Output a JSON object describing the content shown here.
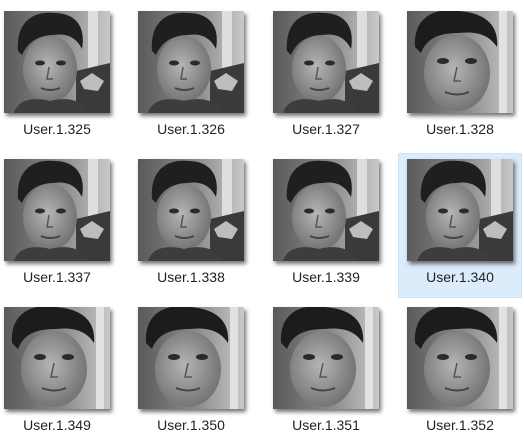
{
  "thumbnails": [
    {
      "name": "User.1.325",
      "selected": false
    },
    {
      "name": "User.1.326",
      "selected": false
    },
    {
      "name": "User.1.327",
      "selected": false
    },
    {
      "name": "User.1.328",
      "selected": false
    },
    {
      "name": "User.1.337",
      "selected": false
    },
    {
      "name": "User.1.338",
      "selected": false
    },
    {
      "name": "User.1.339",
      "selected": false
    },
    {
      "name": "User.1.340",
      "selected": true
    },
    {
      "name": "User.1.349",
      "selected": false
    },
    {
      "name": "User.1.350",
      "selected": false
    },
    {
      "name": "User.1.351",
      "selected": false
    },
    {
      "name": "User.1.352",
      "selected": false
    }
  ],
  "colors": {
    "selection_background": "#dcecfb",
    "label_text": "#222222"
  },
  "icon": "grayscale-face-photo-thumbnail"
}
